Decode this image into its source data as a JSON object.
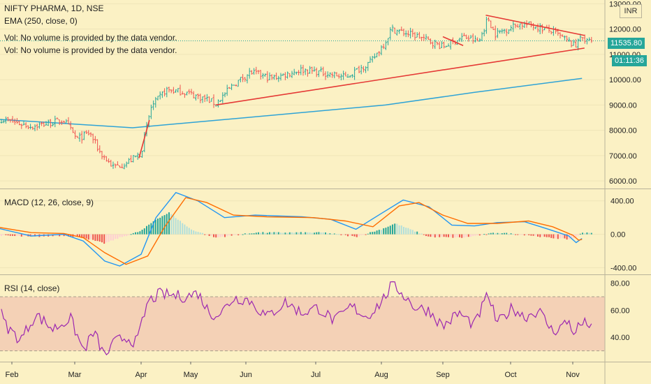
{
  "symbol_line": "NIFTY PHARMA, 1D, NSE",
  "ema_legend": "EMA (250, close, 0)",
  "vol_legend_1": "Vol: No volume is provided by the data vendor.",
  "vol_legend_2": "Vol: No volume is provided by the data vendor.",
  "macd_legend": "MACD (12, 26, close, 9)",
  "rsi_legend": "RSI (14, close)",
  "currency_button": "INR",
  "price_badge": "11535.80",
  "countdown_badge": "01:11:36",
  "colors": {
    "background": "#fbf1c4",
    "up": "#26a69a",
    "down": "#ef5350",
    "ema": "#2ea3d6",
    "trendline": "#e53935",
    "macd_line": "#2196f3",
    "signal_line": "#ff6d00",
    "rsi_line": "#9c27b0",
    "rsi_band": "#f3c9b3"
  },
  "chart_data": [
    {
      "type": "candlestick",
      "title": "NIFTY PHARMA, 1D, NSE",
      "x_tick_labels": [
        "Feb",
        "Mar",
        "Apr",
        "May",
        "Jun",
        "Jul",
        "Aug",
        "Sep",
        "Oct",
        "Nov"
      ],
      "y_tick_labels": [
        "6000.00",
        "7000.00",
        "8000.00",
        "9000.00",
        "10000.00",
        "11000.00",
        "12000.00",
        "13000.00"
      ],
      "ylim": [
        5700,
        13150
      ],
      "last_price": 11535.8,
      "close_path": [
        [
          "Jan-20",
          8500
        ],
        [
          "Feb-10",
          8150
        ],
        [
          "Feb-25",
          8400
        ],
        [
          "Mar-02",
          7650
        ],
        [
          "Mar-08",
          7900
        ],
        [
          "Mar-13",
          7100
        ],
        [
          "Mar-19",
          6550
        ],
        [
          "Mar-25",
          6700
        ],
        [
          "Apr-01",
          7100
        ],
        [
          "Apr-07",
          8900
        ],
        [
          "Apr-16",
          9600
        ],
        [
          "Apr-28",
          9500
        ],
        [
          "May-11",
          9200
        ],
        [
          "May-15",
          9050
        ],
        [
          "May-25",
          9800
        ],
        [
          "Jun-03",
          10300
        ],
        [
          "Jun-12",
          10050
        ],
        [
          "Jun-25",
          10400
        ],
        [
          "Jul-03",
          10300
        ],
        [
          "Jul-15",
          10100
        ],
        [
          "Jul-27",
          10700
        ],
        [
          "Aug-03",
          11500
        ],
        [
          "Aug-06",
          12000
        ],
        [
          "Aug-20",
          11700
        ],
        [
          "Sep-01",
          11300
        ],
        [
          "Sep-10",
          11700
        ],
        [
          "Sep-17",
          11500
        ],
        [
          "Sep-21",
          12450
        ],
        [
          "Sep-24",
          11800
        ],
        [
          "Oct-05",
          12200
        ],
        [
          "Oct-12",
          12150
        ],
        [
          "Oct-22",
          11900
        ],
        [
          "Oct-30",
          11500
        ],
        [
          "Nov-05",
          11300
        ],
        [
          "Nov-09",
          11900
        ],
        [
          "Nov-12",
          11535.8
        ]
      ],
      "ema_250": [
        [
          "Jan-01",
          8500
        ],
        [
          "Feb-20",
          8300
        ],
        [
          "Mar-28",
          8100
        ],
        [
          "Jun-01",
          8500
        ],
        [
          "Aug-03",
          9000
        ],
        [
          "Sep-15",
          9500
        ],
        [
          "Nov-12",
          10050
        ]
      ],
      "trendlines": [
        {
          "from": [
            "May-15",
            9000
          ],
          "to": [
            "Nov-15",
            11250
          ]
        },
        {
          "from": [
            "Mar-31",
            6900
          ],
          "to": [
            "Apr-06",
            8400
          ]
        },
        {
          "from": [
            "Sep-01",
            11700
          ],
          "to": [
            "Sep-10",
            11350
          ]
        },
        {
          "from": [
            "Sep-20",
            12550
          ],
          "to": [
            "Nov-15",
            11750
          ]
        }
      ]
    },
    {
      "type": "line",
      "title": "MACD (12, 26, close, 9)",
      "y_tick_labels": [
        "400.00",
        "0.00",
        "-400.00"
      ],
      "ylim": [
        -480,
        540
      ],
      "series": [
        {
          "name": "MACD",
          "points": [
            [
              "Jan-20",
              80
            ],
            [
              "Feb-10",
              -20
            ],
            [
              "Feb-25",
              0
            ],
            [
              "Mar-05",
              -80
            ],
            [
              "Mar-15",
              -320
            ],
            [
              "Mar-22",
              -380
            ],
            [
              "Apr-01",
              -240
            ],
            [
              "Apr-10",
              200
            ],
            [
              "Apr-22",
              500
            ],
            [
              "May-05",
              400
            ],
            [
              "May-20",
              200
            ],
            [
              "Jun-05",
              230
            ],
            [
              "Jun-25",
              210
            ],
            [
              "Jul-08",
              180
            ],
            [
              "Jul-20",
              60
            ],
            [
              "Aug-01",
              250
            ],
            [
              "Aug-12",
              410
            ],
            [
              "Aug-25",
              330
            ],
            [
              "Sep-05",
              110
            ],
            [
              "Sep-15",
              100
            ],
            [
              "Sep-25",
              140
            ],
            [
              "Oct-08",
              150
            ],
            [
              "Oct-20",
              60
            ],
            [
              "Oct-30",
              -20
            ],
            [
              "Nov-05",
              -100
            ],
            [
              "Nov-12",
              -50
            ]
          ]
        },
        {
          "name": "Signal",
          "points": [
            [
              "Jan-20",
              90
            ],
            [
              "Feb-10",
              20
            ],
            [
              "Feb-25",
              10
            ],
            [
              "Mar-05",
              -40
            ],
            [
              "Mar-15",
              -220
            ],
            [
              "Mar-25",
              -360
            ],
            [
              "Apr-05",
              -260
            ],
            [
              "Apr-15",
              80
            ],
            [
              "Apr-28",
              440
            ],
            [
              "May-10",
              380
            ],
            [
              "May-25",
              230
            ],
            [
              "Jun-10",
              210
            ],
            [
              "Jun-30",
              200
            ],
            [
              "Jul-15",
              160
            ],
            [
              "Jul-28",
              90
            ],
            [
              "Aug-10",
              340
            ],
            [
              "Aug-20",
              380
            ],
            [
              "Sep-01",
              230
            ],
            [
              "Sep-12",
              130
            ],
            [
              "Sep-25",
              130
            ],
            [
              "Oct-10",
              160
            ],
            [
              "Oct-22",
              90
            ],
            [
              "Nov-01",
              -10
            ],
            [
              "Nov-08",
              -70
            ],
            [
              "Nov-12",
              -60
            ]
          ]
        }
      ],
      "histogram": [
        [
          "Jan-20",
          -10
        ],
        [
          "Feb-10",
          -30
        ],
        [
          "Feb-25",
          -15
        ],
        [
          "Mar-05",
          -40
        ],
        [
          "Mar-15",
          -110
        ],
        [
          "Mar-22",
          -40
        ],
        [
          "Apr-01",
          40
        ],
        [
          "Apr-10",
          180
        ],
        [
          "Apr-18",
          260
        ],
        [
          "May-01",
          60
        ],
        [
          "May-15",
          -40
        ],
        [
          "Jun-05",
          20
        ],
        [
          "Jul-05",
          20
        ],
        [
          "Jul-20",
          -30
        ],
        [
          "Aug-01",
          60
        ],
        [
          "Aug-08",
          130
        ],
        [
          "Aug-25",
          -30
        ],
        [
          "Sep-10",
          -40
        ],
        [
          "Sep-25",
          20
        ],
        [
          "Oct-10",
          -10
        ],
        [
          "Oct-20",
          -40
        ],
        [
          "Oct-30",
          -60
        ],
        [
          "Nov-05",
          -40
        ],
        [
          "Nov-12",
          20
        ]
      ]
    },
    {
      "type": "line",
      "title": "RSI (14, close)",
      "y_tick_labels": [
        "80.00",
        "60.00",
        "40.00"
      ],
      "ylim": [
        22,
        86
      ],
      "band": [
        30,
        70
      ],
      "series": [
        {
          "name": "RSI",
          "points": [
            [
              "Jan-20",
              68
            ],
            [
              "Jan-28",
              48
            ],
            [
              "Feb-05",
              38
            ],
            [
              "Feb-12",
              57
            ],
            [
              "Feb-20",
              46
            ],
            [
              "Feb-28",
              54
            ],
            [
              "Mar-05",
              30
            ],
            [
              "Mar-10",
              44
            ],
            [
              "Mar-15",
              26
            ],
            [
              "Mar-20",
              37
            ],
            [
              "Mar-25",
              40
            ],
            [
              "Mar-30",
              36
            ],
            [
              "Apr-05",
              66
            ],
            [
              "Apr-12",
              72
            ],
            [
              "Apr-20",
              71
            ],
            [
              "Apr-28",
              70
            ],
            [
              "May-05",
              73
            ],
            [
              "May-12",
              57
            ],
            [
              "May-18",
              58
            ],
            [
              "May-25",
              69
            ],
            [
              "Jun-02",
              68
            ],
            [
              "Jun-10",
              55
            ],
            [
              "Jun-18",
              66
            ],
            [
              "Jun-25",
              58
            ],
            [
              "Jul-02",
              62
            ],
            [
              "Jul-10",
              52
            ],
            [
              "Jul-18",
              63
            ],
            [
              "Jul-25",
              55
            ],
            [
              "Aug-01",
              66
            ],
            [
              "Aug-06",
              78
            ],
            [
              "Aug-10",
              75
            ],
            [
              "Aug-18",
              62
            ],
            [
              "Aug-25",
              60
            ],
            [
              "Sep-01",
              48
            ],
            [
              "Sep-08",
              58
            ],
            [
              "Sep-15",
              49
            ],
            [
              "Sep-21",
              72
            ],
            [
              "Sep-25",
              50
            ],
            [
              "Oct-02",
              62
            ],
            [
              "Oct-08",
              55
            ],
            [
              "Oct-15",
              60
            ],
            [
              "Oct-22",
              44
            ],
            [
              "Oct-30",
              52
            ],
            [
              "Nov-05",
              40
            ],
            [
              "Nov-09",
              57
            ],
            [
              "Nov-11",
              42
            ],
            [
              "Nov-12",
              50
            ]
          ]
        }
      ]
    }
  ]
}
